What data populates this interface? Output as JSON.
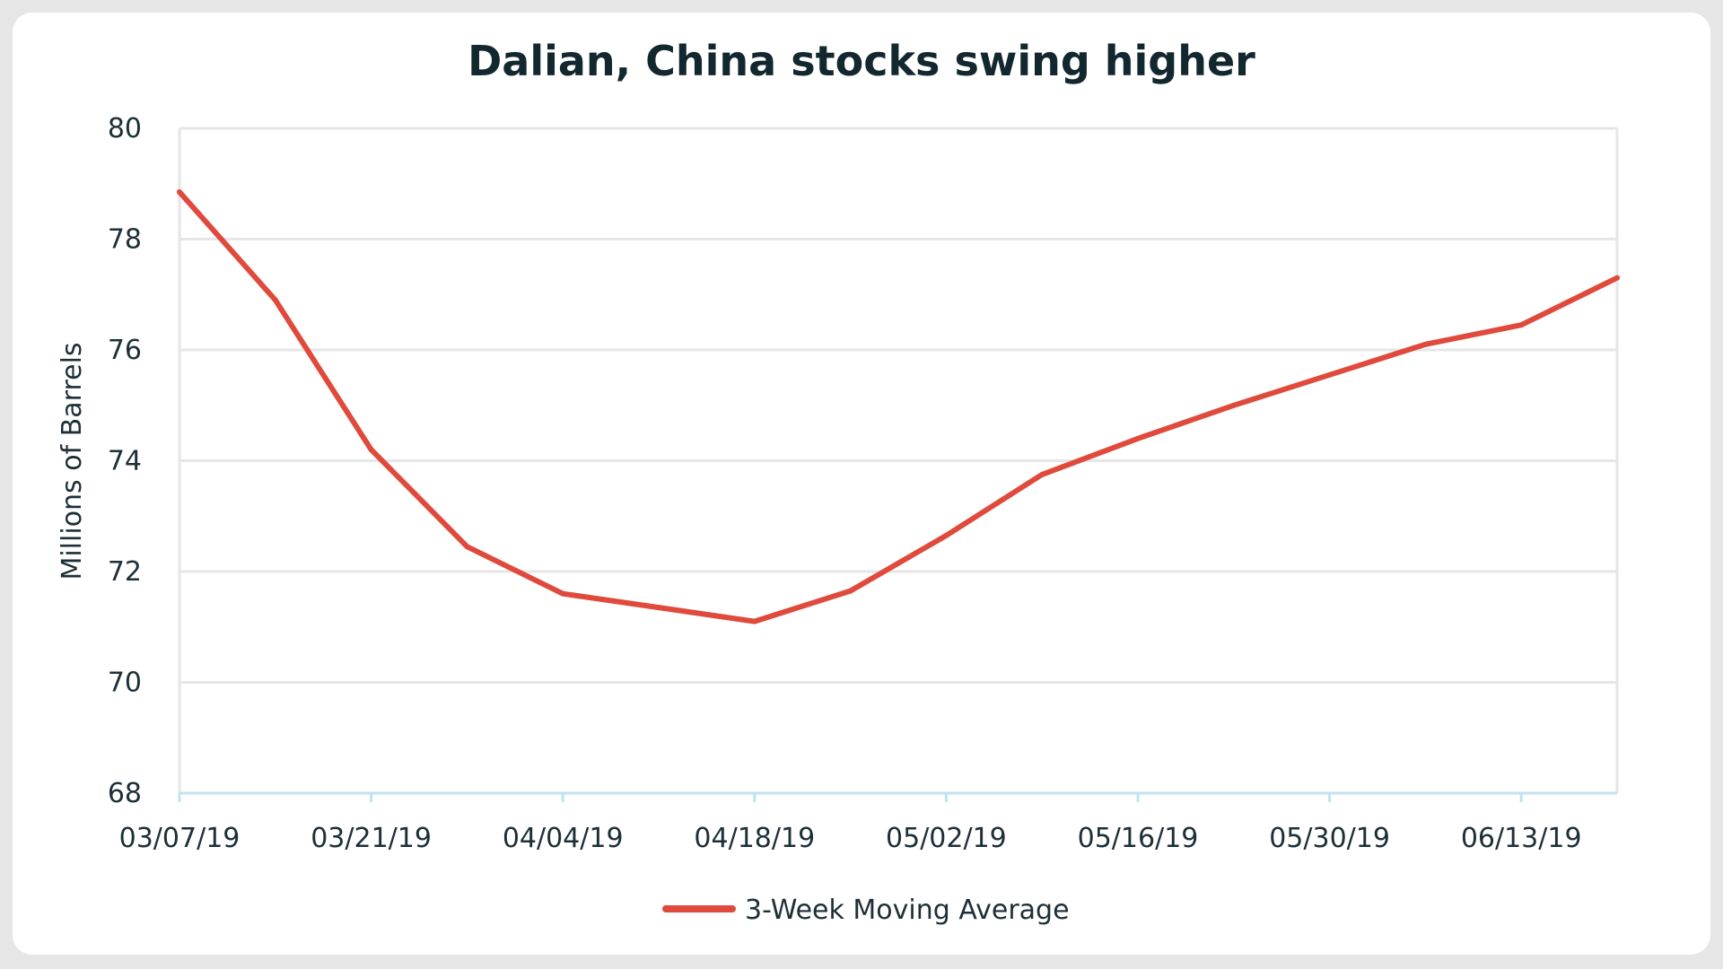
{
  "chart_data": {
    "type": "line",
    "title": "Dalian, China stocks swing higher",
    "xlabel": "",
    "ylabel": "Millions of Barrels",
    "ylim": [
      68,
      80
    ],
    "y_ticks": [
      "80",
      "78",
      "76",
      "74",
      "72",
      "70",
      "68"
    ],
    "x_ticks": [
      "03/07/19",
      "03/21/19",
      "04/04/19",
      "04/18/19",
      "05/02/19",
      "05/16/19",
      "05/30/19",
      "06/13/19"
    ],
    "x": [
      "03/07/19",
      "03/14/19",
      "03/21/19",
      "03/28/19",
      "04/04/19",
      "04/11/19",
      "04/18/19",
      "04/25/19",
      "05/02/19",
      "05/09/19",
      "05/16/19",
      "05/23/19",
      "05/30/19",
      "06/06/19",
      "06/13/19",
      "06/20/19"
    ],
    "grid": true,
    "legend": "bottom-center",
    "series": [
      {
        "name": "3-Week Moving Average",
        "color": "#e04a3c",
        "values": [
          78.85,
          76.9,
          74.2,
          72.45,
          71.6,
          71.35,
          71.1,
          71.65,
          72.65,
          73.75,
          74.4,
          75.0,
          75.55,
          76.1,
          76.45,
          77.3
        ]
      }
    ]
  }
}
